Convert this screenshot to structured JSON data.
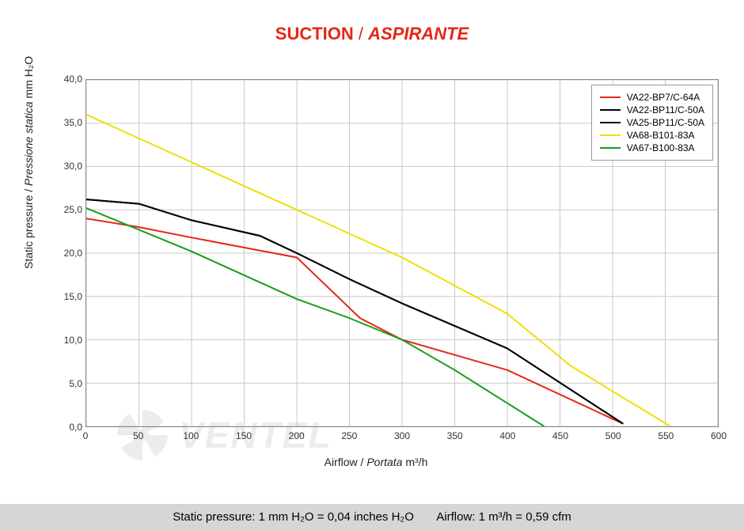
{
  "title": {
    "part1": "SUCTION",
    "sep": " / ",
    "part2": "ASPIRANTE"
  },
  "chart": {
    "type": "line",
    "xlabel_plain": "Airflow / ",
    "xlabel_italic": "Portata",
    "xlabel_unit": "  m³/h",
    "ylabel_plain": "Static pressure / ",
    "ylabel_italic": "Pressione statica",
    "ylabel_unit": "  mm  H₂O",
    "xlim": [
      0,
      600
    ],
    "ylim": [
      0,
      40
    ],
    "xtick_step": 50,
    "ytick_step": 5,
    "xticks": [
      "0",
      "50",
      "100",
      "150",
      "200",
      "250",
      "300",
      "350",
      "400",
      "450",
      "500",
      "550",
      "600"
    ],
    "yticks": [
      "0,0",
      "5,0",
      "10,0",
      "15,0",
      "20,0",
      "25,0",
      "30,0",
      "35,0",
      "40,0"
    ],
    "grid_color": "#c9c9c9",
    "border_color": "#888888",
    "background_color": "#ffffff",
    "line_width": 2,
    "tick_fontsize": 12,
    "label_fontsize": 14,
    "series": [
      {
        "name": "VA22-BP7/C-64A",
        "color": "#e52617",
        "x": [
          0,
          50,
          100,
          165,
          200,
          260,
          300,
          400,
          510
        ],
        "y": [
          24.0,
          23.0,
          21.8,
          20.3,
          19.5,
          12.5,
          10.0,
          6.5,
          0.3
        ]
      },
      {
        "name": "VA22-BP11/C-50A",
        "color": "#000000",
        "x": [
          0,
          50,
          100,
          165,
          200,
          250,
          300,
          400,
          510
        ],
        "y": [
          26.2,
          25.7,
          23.8,
          22.0,
          20.0,
          17.0,
          14.2,
          9.0,
          0.3
        ]
      },
      {
        "name": "VA25-BP11/C-50A",
        "color": "#000000",
        "x": [
          0,
          50,
          100,
          165,
          200,
          250,
          300,
          400,
          510
        ],
        "y": [
          26.2,
          25.7,
          23.8,
          22.0,
          20.0,
          17.0,
          14.2,
          9.0,
          0.3
        ]
      },
      {
        "name": "VA68-B101-83A",
        "color": "#eee000",
        "x": [
          0,
          100,
          200,
          300,
          400,
          460,
          555
        ],
        "y": [
          36.0,
          30.5,
          25.0,
          19.5,
          13.0,
          7.0,
          0.0
        ]
      },
      {
        "name": "VA67-B100-83A",
        "color": "#1a9c1a",
        "x": [
          0,
          100,
          200,
          250,
          300,
          350,
          435
        ],
        "y": [
          25.2,
          20.2,
          14.7,
          12.5,
          10.0,
          6.5,
          0.0
        ]
      }
    ],
    "legend": {
      "position": "top-right",
      "border_color": "#999999",
      "fontsize": 12
    }
  },
  "footer": {
    "text_left": "Static pressure: 1 mm H₂O = 0,04 inches H₂O",
    "text_right": "Airflow: 1 m³/h = 0,59 cfm",
    "background_color": "#d6d6d6"
  },
  "watermark": {
    "text": "VENTEL"
  }
}
